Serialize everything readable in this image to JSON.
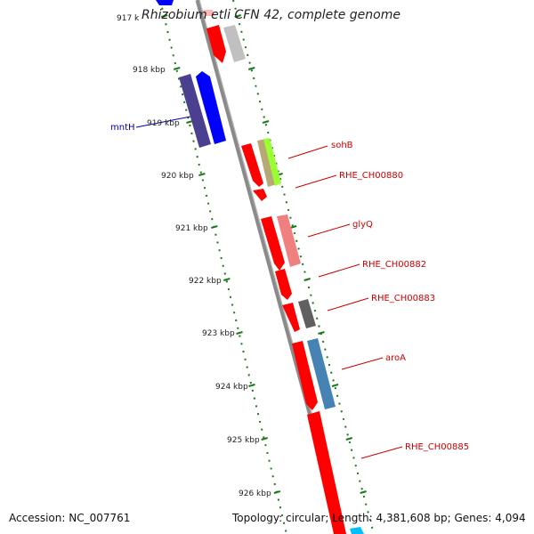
{
  "title": "Rhizobium etli CFN 42, complete genome",
  "footer": {
    "accession": "Accession: NC_007761",
    "topology": "Topology: circular; Length: 4,381,608 bp; Genes: 4,094"
  },
  "ticks": [
    {
      "label": "917 k",
      "pos": 917
    },
    {
      "label": "918 kbp",
      "pos": 918
    },
    {
      "label": "919 kbp",
      "pos": 919
    },
    {
      "label": "920 kbp",
      "pos": 920
    },
    {
      "label": "921 kbp",
      "pos": 921
    },
    {
      "label": "922 kbp",
      "pos": 922
    },
    {
      "label": "923 kbp",
      "pos": 923
    },
    {
      "label": "924 kbp",
      "pos": 924
    },
    {
      "label": "925 kbp",
      "pos": 925
    },
    {
      "label": "926 kbp",
      "pos": 926
    }
  ],
  "gene_labels": [
    {
      "name": "mntH",
      "color": "#0000aa"
    },
    {
      "name": "sohB",
      "color": "#cc0000"
    },
    {
      "name": "RHE_CH00880",
      "color": "#cc0000"
    },
    {
      "name": "glyQ",
      "color": "#cc0000"
    },
    {
      "name": "RHE_CH00882",
      "color": "#cc0000"
    },
    {
      "name": "RHE_CH00883",
      "color": "#cc0000"
    },
    {
      "name": "aroA",
      "color": "#cc0000"
    },
    {
      "name": "RHE_CH00885",
      "color": "#cc0000"
    }
  ],
  "colors": {
    "backbone": "#808080",
    "tick_dots": "#1a7a1a",
    "forward_red": "#ff0000",
    "label_red": "#cc0000",
    "label_blue": "#0000aa"
  }
}
